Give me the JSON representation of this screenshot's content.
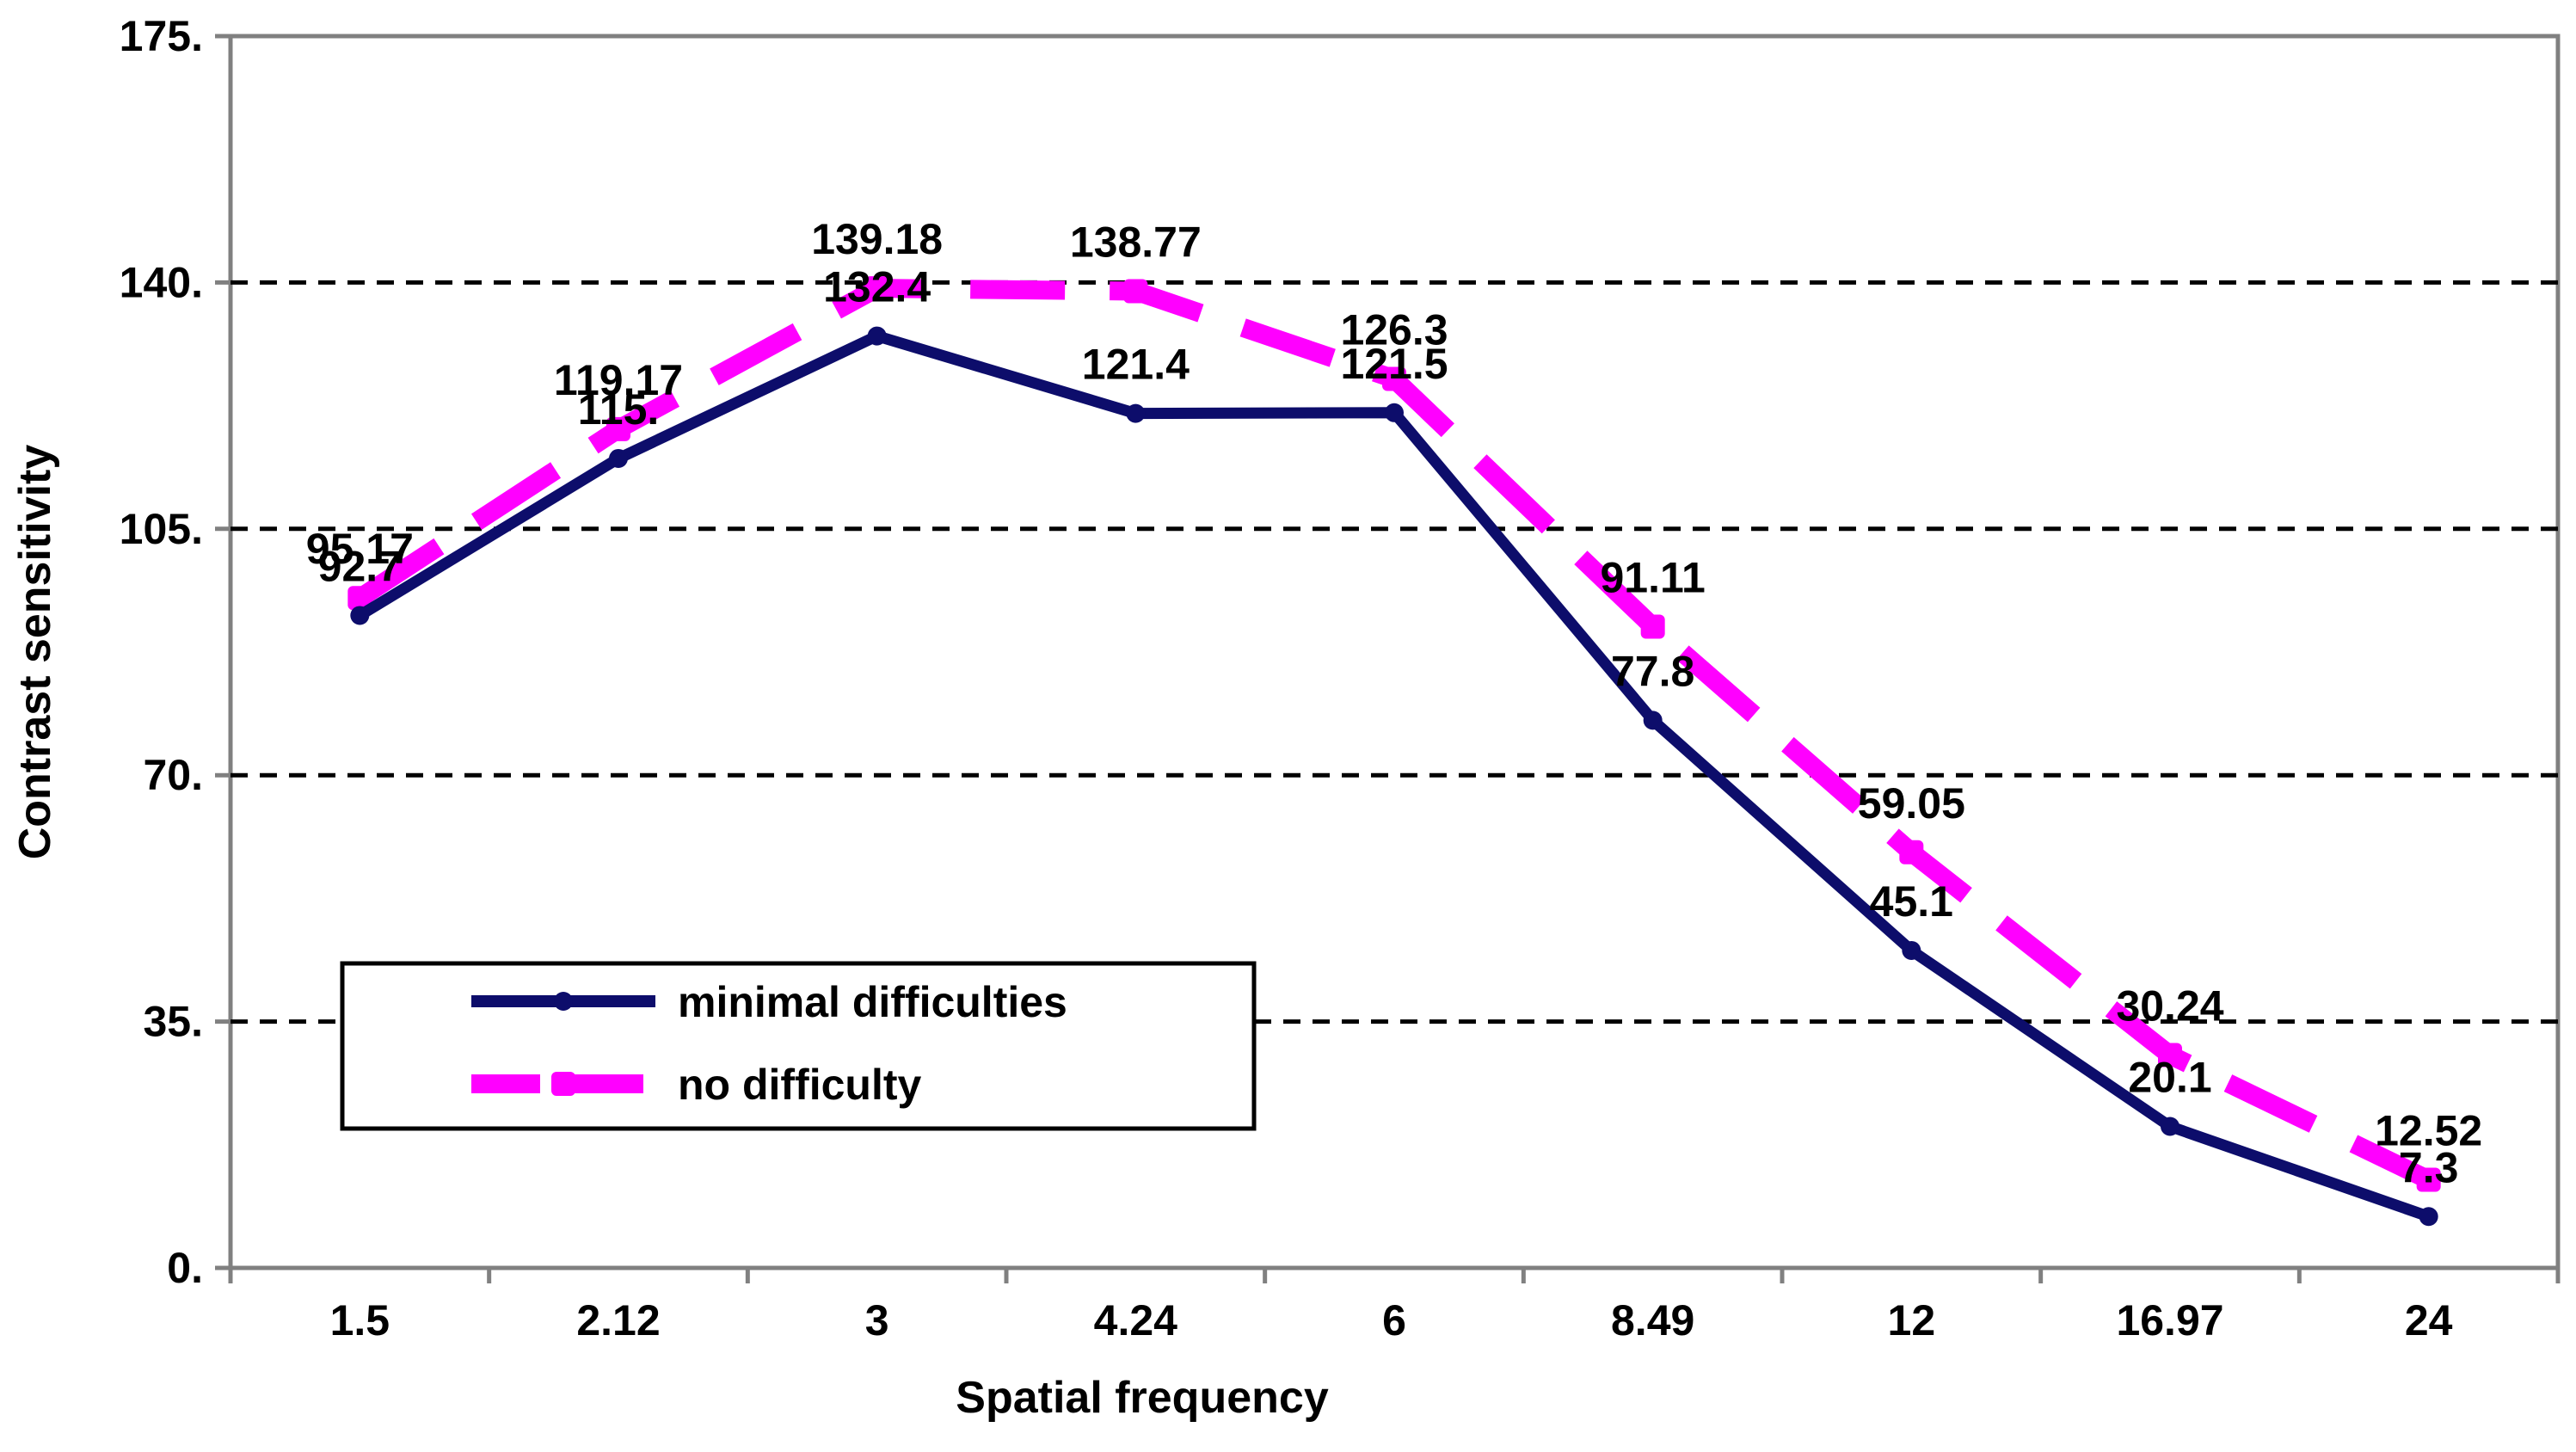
{
  "chart_data": {
    "type": "line",
    "title": "",
    "xlabel": "Spatial frequency",
    "ylabel": "Contrast sensitivity",
    "categories": [
      "1.5",
      "2.12",
      "3",
      "4.24",
      "6",
      "8.49",
      "12",
      "16.97",
      "24"
    ],
    "ylim": [
      0,
      175
    ],
    "yticks": [
      0,
      35,
      70,
      105,
      140,
      175
    ],
    "ytick_labels": [
      "0.",
      "35.",
      "70.",
      "105.",
      "140.",
      "175."
    ],
    "grid": "horizontal dashed",
    "legend_position": "bottom-left",
    "series": [
      {
        "name": "minimal difficulties",
        "color": "#0d0d6b",
        "style": "solid",
        "values": [
          92.7,
          115,
          132.4,
          121.4,
          121.5,
          77.8,
          45.1,
          20.1,
          7.3
        ],
        "labels": [
          "92.7",
          "115.",
          "132.4",
          "121.4",
          "121.5",
          "77.8",
          "45.1",
          "20.1",
          "7.3"
        ]
      },
      {
        "name": "no difficulty",
        "color": "#ff00ff",
        "style": "dashed",
        "values": [
          95.17,
          119.17,
          139.18,
          138.77,
          126.3,
          91.11,
          59.05,
          30.24,
          12.52
        ],
        "labels": [
          "95.17",
          "119.17",
          "139.18",
          "138.77",
          "126.3",
          "91.11",
          "59.05",
          "30.24",
          "12.52"
        ]
      }
    ]
  }
}
